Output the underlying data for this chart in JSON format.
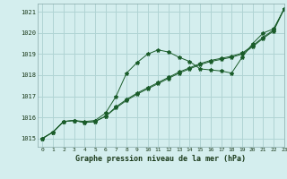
{
  "xlabel": "Graphe pression niveau de la mer (hPa)",
  "background_color": "#d4eeee",
  "grid_color": "#b0d4d4",
  "line_color": "#1a5c2a",
  "xlim": [
    -0.5,
    23
  ],
  "ylim": [
    1014.6,
    1021.4
  ],
  "xticks": [
    0,
    1,
    2,
    3,
    4,
    5,
    6,
    7,
    8,
    9,
    10,
    11,
    12,
    13,
    14,
    15,
    16,
    17,
    18,
    19,
    20,
    21,
    22,
    23
  ],
  "yticks": [
    1015,
    1016,
    1017,
    1018,
    1019,
    1020,
    1021
  ],
  "series": [
    [
      1015.0,
      1015.3,
      1015.8,
      1015.85,
      1015.8,
      1015.85,
      1016.2,
      1017.0,
      1018.1,
      1018.6,
      1019.0,
      1019.2,
      1019.1,
      1018.85,
      1018.65,
      1018.3,
      1018.25,
      1018.2,
      1018.1,
      1018.85,
      1019.5,
      1020.0,
      1020.2,
      1021.15
    ],
    [
      1015.0,
      1015.3,
      1015.8,
      1015.85,
      1015.75,
      1015.8,
      1016.05,
      1016.5,
      1016.85,
      1017.15,
      1017.4,
      1017.65,
      1017.9,
      1018.15,
      1018.35,
      1018.55,
      1018.7,
      1018.8,
      1018.9,
      1019.05,
      1019.4,
      1019.8,
      1020.15,
      1021.15
    ],
    [
      1015.0,
      1015.3,
      1015.8,
      1015.85,
      1015.75,
      1015.8,
      1016.05,
      1016.45,
      1016.8,
      1017.1,
      1017.35,
      1017.6,
      1017.85,
      1018.1,
      1018.3,
      1018.5,
      1018.65,
      1018.75,
      1018.85,
      1019.0,
      1019.35,
      1019.75,
      1020.1,
      1021.15
    ]
  ],
  "xlabel_fontsize": 6.0,
  "tick_fontsize": 5.0,
  "tick_fontsize_x": 4.5
}
